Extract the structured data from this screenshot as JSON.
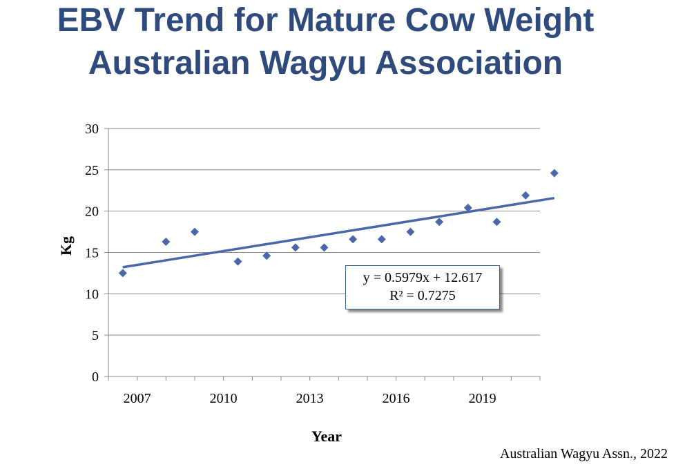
{
  "title_lines": [
    "EBV Trend for Mature Cow Weight",
    "Australian Wagyu Association"
  ],
  "source_note": "Australian Wagyu Assn., 2022",
  "trendline": {
    "equation": "y = 0.5979x + 12.617",
    "r_squared": "R² = 0.7275",
    "slope": 0.5979,
    "intercept": 12.617
  },
  "colors": {
    "title": "#2f4a7c",
    "marker": "#4a67a8",
    "trendline": "#4a67a8",
    "grid": "#888888",
    "axis": "#888888"
  },
  "chart_data": {
    "type": "scatter",
    "title": "EBV Trend for Mature Cow Weight Australian Wagyu Association",
    "xlabel": "Year",
    "ylabel": "Kg",
    "xlim": [
      2006,
      2021
    ],
    "ylim": [
      0,
      30
    ],
    "y_ticks": [
      0,
      5,
      10,
      15,
      20,
      25,
      30
    ],
    "x_tick_labels": [
      "2007",
      "2010",
      "2013",
      "2016",
      "2019"
    ],
    "x_tick_values": [
      2007,
      2010,
      2013,
      2016,
      2019
    ],
    "grid": "horizontal",
    "marker": "diamond",
    "series": [
      {
        "x": [
          2006.5,
          2008,
          2009,
          2010.5,
          2011.5,
          2012.5,
          2013.5,
          2014.5,
          2015.5,
          2016.5,
          2017.5,
          2018.5,
          2019.5,
          2020.5,
          2021.5
        ],
        "y": [
          12.5,
          16.3,
          17.5,
          13.9,
          14.6,
          15.6,
          15.6,
          16.6,
          16.6,
          17.5,
          18.7,
          20.4,
          18.7,
          21.9,
          24.6
        ]
      }
    ]
  }
}
